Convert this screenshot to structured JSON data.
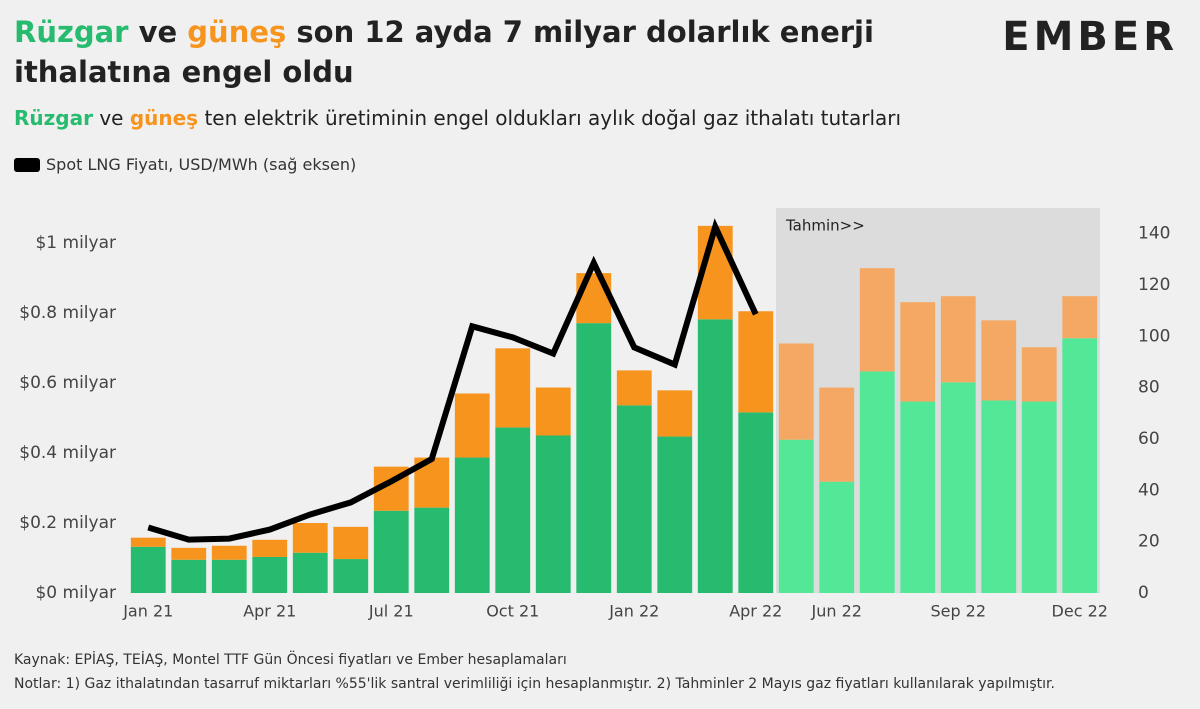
{
  "chart_data": {
    "type": "stacked-bar-line",
    "title": [
      "Rüzgar",
      "ve",
      "güneş",
      "son 12 ayda 7 milyar dolarlık enerji ithalatına engel oldu"
    ],
    "subtitle": [
      "Rüzgar",
      "ve",
      "güneş",
      "ten elektrik üretiminin engel oldukları aylık doğal gaz ithalatı tutarları"
    ],
    "logo": "EMBER",
    "annotation": "Tahmin>>",
    "categories": [
      "Jan 21",
      null,
      null,
      "Apr 21",
      null,
      null,
      "Jul 21",
      null,
      null,
      "Oct 21",
      null,
      null,
      "Jan 22",
      null,
      null,
      "Apr 22",
      null,
      "Jun 22",
      null,
      null,
      "Sep 22",
      null,
      null,
      "Dec 22"
    ],
    "series": [
      {
        "values": [
          0.132,
          0.095,
          0.095,
          0.103,
          0.115,
          0.097,
          0.235,
          0.244,
          0.387,
          0.473,
          0.45,
          0.771,
          0.536,
          0.447,
          0.782,
          0.516,
          0.438,
          0.318,
          0.633,
          0.547,
          0.602,
          0.55,
          0.547,
          0.728
        ],
        "colors": [
          "#26bb6f",
          "#26bb6f",
          "#26bb6f",
          "#26bb6f",
          "#26bb6f",
          "#26bb6f",
          "#26bb6f",
          "#26bb6f",
          "#26bb6f",
          "#26bb6f",
          "#26bb6f",
          "#26bb6f",
          "#26bb6f",
          "#26bb6f",
          "#26bb6f",
          "#26bb6f",
          "#52e898",
          "#52e898",
          "#52e898",
          "#52e898",
          "#52e898",
          "#52e898",
          "#52e898",
          "#52e898"
        ]
      },
      {
        "values": [
          0.026,
          0.034,
          0.04,
          0.049,
          0.085,
          0.092,
          0.126,
          0.143,
          0.183,
          0.226,
          0.137,
          0.143,
          0.1,
          0.132,
          0.267,
          0.289,
          0.275,
          0.269,
          0.295,
          0.284,
          0.246,
          0.229,
          0.155,
          0.12
        ],
        "colors": [
          "#f7941d",
          "#f7941d",
          "#f7941d",
          "#f7941d",
          "#f7941d",
          "#f7941d",
          "#f7941d",
          "#f7941d",
          "#f7941d",
          "#f7941d",
          "#f7941d",
          "#f7941d",
          "#f7941d",
          "#f7941d",
          "#f7941d",
          "#f7941d",
          "#f5a863",
          "#f5a863",
          "#f5a863",
          "#f5a863",
          "#f5a863",
          "#f5a863",
          "#f5a863",
          "#f5a863"
        ]
      },
      {
        "name": "Spot LNG Fiyatı, USD/MWh (sağ eksen)",
        "color": "#000000",
        "axis": "y2",
        "values": [
          25.5,
          20.8,
          21.2,
          24.7,
          30.6,
          35.3,
          43.5,
          52.2,
          103.9,
          99.6,
          93.3,
          128.6,
          95.7,
          89,
          142.7,
          108.6,
          null,
          null,
          null,
          null,
          null,
          null,
          null,
          null
        ]
      }
    ],
    "ylim": [
      0,
      1.1
    ],
    "yticks": [
      {
        "value": 0,
        "label": "$0 milyar"
      },
      {
        "value": 0.2,
        "label": "$0.2 milyar"
      },
      {
        "value": 0.4,
        "label": "$0.4 milyar"
      },
      {
        "value": 0.6,
        "label": "$0.6 milyar"
      },
      {
        "value": 0.8,
        "label": "$0.8 milyar"
      },
      {
        "value": 1,
        "label": "$1 milyar"
      }
    ],
    "y2lim": [
      0,
      150
    ],
    "y2ticks": [
      0,
      20,
      40,
      60,
      80,
      100,
      120,
      140
    ],
    "grid": false,
    "footer": [
      "Kaynak: EPİAŞ, TEİAŞ, Montel TTF Gün Öncesi fiyatları ve Ember hesaplamaları",
      "Notlar: 1) Gaz ithalatından tasarruf miktarları %55'lik santral verimliliği için hesaplanmıştır. 2) Tahminler 2 Mayıs gaz fiyatları kullanılarak yapılmıştır."
    ]
  }
}
